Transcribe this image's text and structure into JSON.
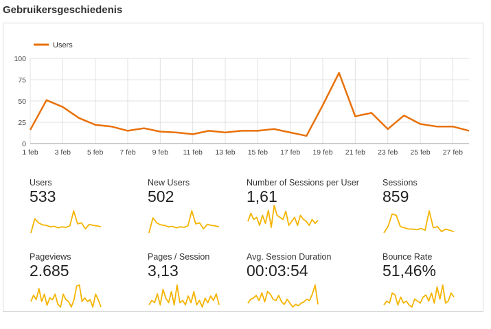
{
  "page": {
    "title": "Gebruikersgeschiedenis"
  },
  "chart_data": {
    "type": "line",
    "legend": {
      "placement": "top-left",
      "entries": [
        "Users"
      ]
    },
    "series": [
      {
        "name": "Users",
        "color": "#e8710a",
        "values": [
          16,
          51,
          43,
          30,
          22,
          20,
          15,
          18,
          14,
          13,
          11,
          15,
          13,
          15,
          15,
          17,
          13,
          9,
          45,
          83,
          32,
          36,
          17,
          33,
          23,
          20,
          20,
          15
        ]
      }
    ],
    "x_tick_labels": [
      "1 feb",
      "3 feb",
      "5 feb",
      "7 feb",
      "9 feb",
      "11 feb",
      "13 feb",
      "15 feb",
      "17 feb",
      "19 feb",
      "21 feb",
      "23 feb",
      "25 feb",
      "27 feb"
    ],
    "y_ticks": [
      0,
      25,
      50,
      75,
      100
    ],
    "ylim": [
      0,
      100
    ],
    "grid": true
  },
  "metrics": [
    {
      "label": "Users",
      "value": "533",
      "spark": [
        10,
        38,
        30,
        26,
        25,
        22,
        23,
        20,
        22,
        21,
        24,
        54,
        28,
        30,
        18,
        27,
        25,
        24,
        22
      ]
    },
    {
      "label": "New Users",
      "value": "502",
      "spark": [
        8,
        38,
        28,
        24,
        23,
        20,
        21,
        18,
        20,
        19,
        22,
        52,
        26,
        28,
        16,
        25,
        23,
        22,
        20
      ]
    },
    {
      "label": "Number of Sessions per User",
      "value": "1,61",
      "spark": [
        34,
        42,
        36,
        38,
        30,
        40,
        32,
        45,
        28,
        50,
        40,
        38,
        36,
        44,
        30,
        34,
        38,
        30,
        40,
        36,
        34,
        30,
        36,
        32,
        35
      ]
    },
    {
      "label": "Sessions",
      "value": "859",
      "spark": [
        10,
        20,
        40,
        38,
        20,
        18,
        16,
        16,
        15,
        17,
        14,
        45,
        18,
        20,
        12,
        16,
        14,
        12
      ]
    },
    {
      "label": "Pageviews",
      "value": "2.685",
      "spark": [
        28,
        35,
        30,
        42,
        28,
        36,
        24,
        32,
        30,
        36,
        25,
        22,
        36,
        30,
        28,
        22,
        30,
        45,
        46,
        28,
        32,
        28,
        30,
        22,
        36,
        30,
        22
      ]
    },
    {
      "label": "Pages / Session",
      "value": "3,13",
      "spark": [
        28,
        32,
        30,
        38,
        28,
        42,
        34,
        30,
        40,
        28,
        46,
        30,
        32,
        28,
        36,
        30,
        40,
        28,
        32,
        26,
        34,
        30,
        36,
        32,
        38,
        28
      ]
    },
    {
      "label": "Avg. Session Duration",
      "value": "00:03:54",
      "spark": [
        24,
        30,
        32,
        36,
        28,
        40,
        26,
        42,
        38,
        30,
        28,
        36,
        26,
        22,
        30,
        24,
        18,
        22,
        20,
        24,
        26,
        30,
        28,
        38,
        52,
        22
      ]
    },
    {
      "label": "Bounce Rate",
      "value": "51,46%",
      "spark": [
        28,
        32,
        30,
        40,
        38,
        28,
        36,
        30,
        32,
        28,
        26,
        34,
        32,
        30,
        36,
        38,
        32,
        40,
        30,
        46,
        34,
        48,
        30,
        32,
        40,
        36
      ]
    }
  ],
  "colors": {
    "sparkline": "#f4b400",
    "grid": "#e0e0e0",
    "axis_text": "#444444"
  }
}
